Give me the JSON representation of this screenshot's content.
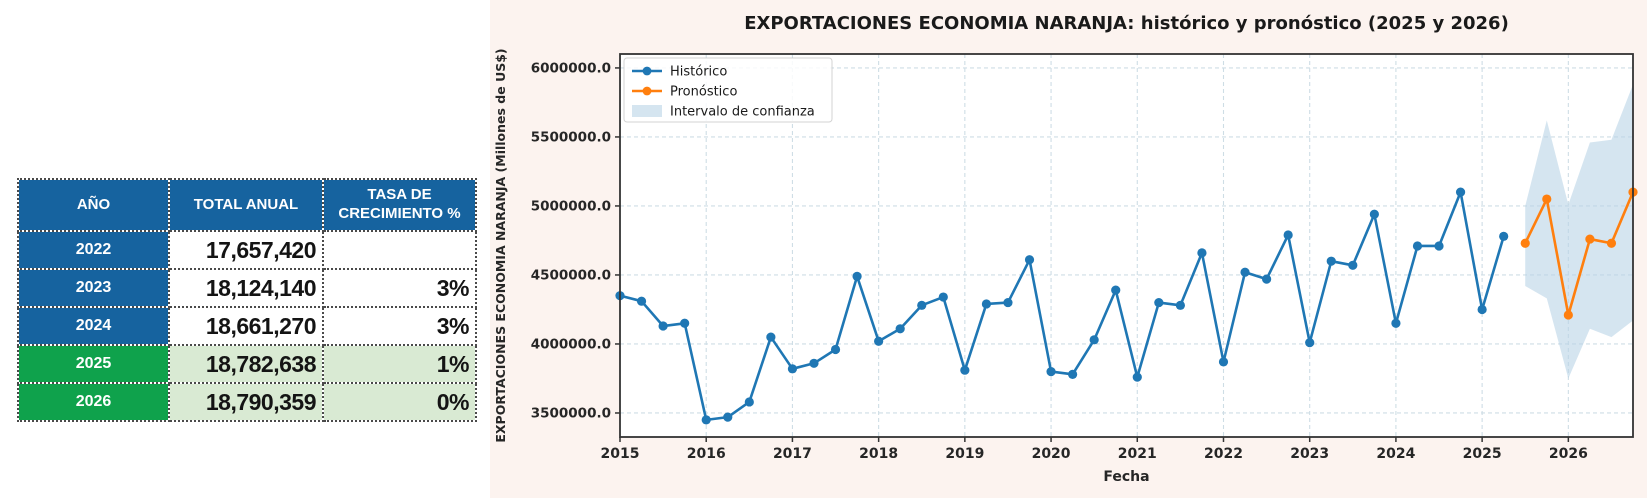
{
  "table": {
    "headers": [
      "AÑO",
      "TOTAL ANUAL",
      "TASA DE CRECIMIENTO %"
    ],
    "rows": [
      {
        "year": "2022",
        "total": "17,657,420",
        "growth": ""
      },
      {
        "year": "2023",
        "total": "18,124,140",
        "growth": "3%"
      },
      {
        "year": "2024",
        "total": "18,661,270",
        "growth": "3%"
      },
      {
        "year": "2025",
        "total": "18,782,638",
        "growth": "1%"
      },
      {
        "year": "2026",
        "total": "18,790,359",
        "growth": "0%"
      }
    ],
    "colors": {
      "header_bg": "#16639F",
      "historical_year_bg": "#16639F",
      "forecast_year_bg": "#0FA24C",
      "forecast_cell_bg": "#D9EAD3",
      "header_text": "#FFFFFF"
    }
  },
  "chart_data": {
    "type": "line",
    "title": "EXPORTACIONES ECONOMIA NARANJA: histórico y pronóstico (2025 y 2026)",
    "xlabel": "Fecha",
    "ylabel": "EXPORTACIONES ECONOMIA NARANJA (Millones de US$)",
    "xlim": [
      2015,
      2026.75
    ],
    "ylim": [
      3326000,
      6101000
    ],
    "x_ticks": [
      2015,
      2016,
      2017,
      2018,
      2019,
      2020,
      2021,
      2022,
      2023,
      2024,
      2025,
      2026
    ],
    "y_ticks": [
      3500000,
      4000000,
      4500000,
      5000000,
      5500000,
      6000000
    ],
    "y_tick_labels": [
      "3500000.0",
      "4000000.0",
      "4500000.0",
      "5000000.0",
      "5500000.0",
      "6000000.0"
    ],
    "grid": true,
    "legend_position": "upper-left",
    "legend": [
      "Histórico",
      "Pronóstico",
      "Intervalo de confianza"
    ],
    "colors": {
      "historical": "#1f77b4",
      "forecast": "#ff7f0e",
      "confidence_band": "#b9d3e6",
      "grid": "#c9dae3",
      "figure_bg": "#fcf3ef",
      "frame": "#333333"
    },
    "series": [
      {
        "name": "Histórico",
        "color": "#1f77b4",
        "marker": "circle",
        "x": [
          2015.0,
          2015.25,
          2015.5,
          2015.75,
          2016.0,
          2016.25,
          2016.5,
          2016.75,
          2017.0,
          2017.25,
          2017.5,
          2017.75,
          2018.0,
          2018.25,
          2018.5,
          2018.75,
          2019.0,
          2019.25,
          2019.5,
          2019.75,
          2020.0,
          2020.25,
          2020.5,
          2020.75,
          2021.0,
          2021.25,
          2021.5,
          2021.75,
          2022.0,
          2022.25,
          2022.5,
          2022.75,
          2023.0,
          2023.25,
          2023.5,
          2023.75,
          2024.0,
          2024.25,
          2024.5,
          2024.75,
          2025.0,
          2025.25
        ],
        "values": [
          4350000,
          4310000,
          4130000,
          4150000,
          3450000,
          3470000,
          3580000,
          4050000,
          3820000,
          3860000,
          3960000,
          4490000,
          4020000,
          4110000,
          4280000,
          4340000,
          3810000,
          4290000,
          4300000,
          4610000,
          3800000,
          3780000,
          4030000,
          4390000,
          3760000,
          4300000,
          4280000,
          4660000,
          3870000,
          4520000,
          4470000,
          4790000,
          4010000,
          4600000,
          4570000,
          4940000,
          4150000,
          4710000,
          4710000,
          5100000,
          4250000,
          4780000
        ]
      },
      {
        "name": "Pronóstico",
        "color": "#ff7f0e",
        "marker": "circle",
        "x": [
          2025.5,
          2025.75,
          2026.0,
          2026.25,
          2026.5,
          2026.75
        ],
        "values": [
          4730000,
          5050000,
          4210000,
          4760000,
          4730000,
          5100000
        ]
      }
    ],
    "confidence_interval": {
      "name": "Intervalo de confianza",
      "color": "#b9d3e6",
      "opacity": 0.6,
      "x": [
        2025.5,
        2025.75,
        2026.0,
        2026.25,
        2026.5,
        2026.75
      ],
      "upper": [
        5000000,
        5620000,
        5010000,
        5460000,
        5480000,
        5880000
      ],
      "lower": [
        4420000,
        4330000,
        3750000,
        4110000,
        4050000,
        4170000
      ]
    }
  }
}
